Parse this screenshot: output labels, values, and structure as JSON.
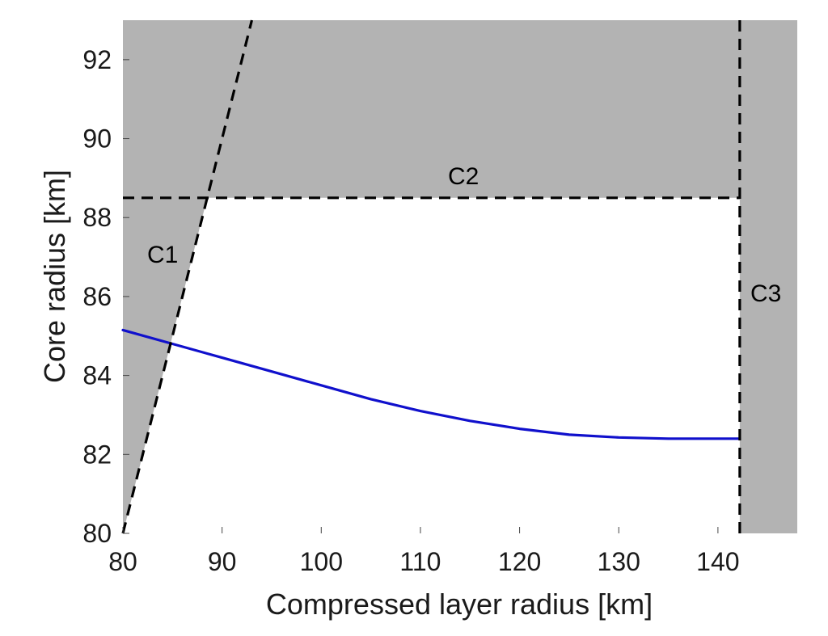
{
  "chart_data": {
    "type": "line",
    "xlabel": "Compressed layer radius [km]",
    "ylabel": "Core radius [km]",
    "xlim": [
      80,
      148
    ],
    "ylim": [
      80,
      93
    ],
    "xticks": [
      80,
      90,
      100,
      110,
      120,
      130,
      140
    ],
    "yticks": [
      80,
      82,
      84,
      86,
      88,
      90,
      92
    ],
    "grid": false,
    "colors": {
      "excluded": "#b3b3b3",
      "allowed": "#ffffff",
      "curve": "#1010cc",
      "constraint": "#000000"
    },
    "series": [
      {
        "x": [
          80,
          85,
          90,
          95,
          100,
          105,
          110,
          115,
          120,
          125,
          130,
          135,
          140,
          142.2
        ],
        "y": [
          85.15,
          84.8,
          84.45,
          84.1,
          83.75,
          83.4,
          83.1,
          82.85,
          82.65,
          82.5,
          82.43,
          82.4,
          82.4,
          82.4
        ]
      }
    ],
    "constraints": [
      {
        "label": "C1",
        "kind": "sloped",
        "x": [
          80,
          93
        ],
        "y": [
          80,
          93
        ]
      },
      {
        "label": "C2",
        "kind": "horizontal",
        "y": 88.5
      },
      {
        "label": "C3",
        "kind": "vertical",
        "x": 142.2
      }
    ]
  }
}
